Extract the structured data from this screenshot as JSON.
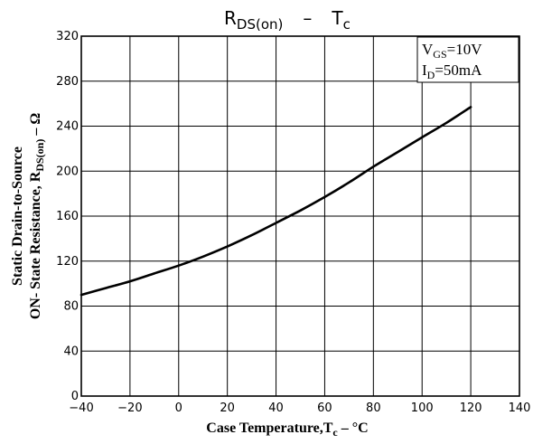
{
  "chart_data": {
    "type": "line",
    "title": {
      "main": "R",
      "main_sub": "DS(on)",
      "separator": "–",
      "right": "T",
      "right_sub": "c"
    },
    "xlabel": {
      "text": "Case Temperature,T",
      "sub": "c",
      "suffix": " – °C"
    },
    "ylabel": {
      "line1": "Static Drain-to-Source",
      "line2_text": "ON- State Resistance, R",
      "line2_sub": "DS(on)",
      "line2_suffix": " – Ω"
    },
    "xlim": [
      -40,
      140
    ],
    "ylim": [
      0,
      320
    ],
    "x_ticks": [
      -40,
      -20,
      0,
      20,
      40,
      60,
      80,
      100,
      120,
      140
    ],
    "y_ticks": [
      0,
      40,
      80,
      120,
      160,
      200,
      240,
      280,
      320
    ],
    "grid": true,
    "conditions": [
      {
        "label": "V",
        "sub": "GS",
        "value": "=10V"
      },
      {
        "label": "I",
        "sub": "D",
        "value": "=50mA"
      }
    ],
    "series": [
      {
        "x": [
          -40,
          -30,
          -20,
          -10,
          0,
          10,
          20,
          30,
          40,
          50,
          60,
          70,
          80,
          90,
          100,
          110,
          120
        ],
        "y": [
          90,
          96,
          102,
          109,
          116,
          124,
          133,
          143,
          154,
          165,
          177,
          190,
          204,
          217,
          230,
          243,
          257
        ]
      }
    ],
    "colors": {
      "line": "#000000",
      "grid": "#000000",
      "background": "#ffffff"
    }
  }
}
